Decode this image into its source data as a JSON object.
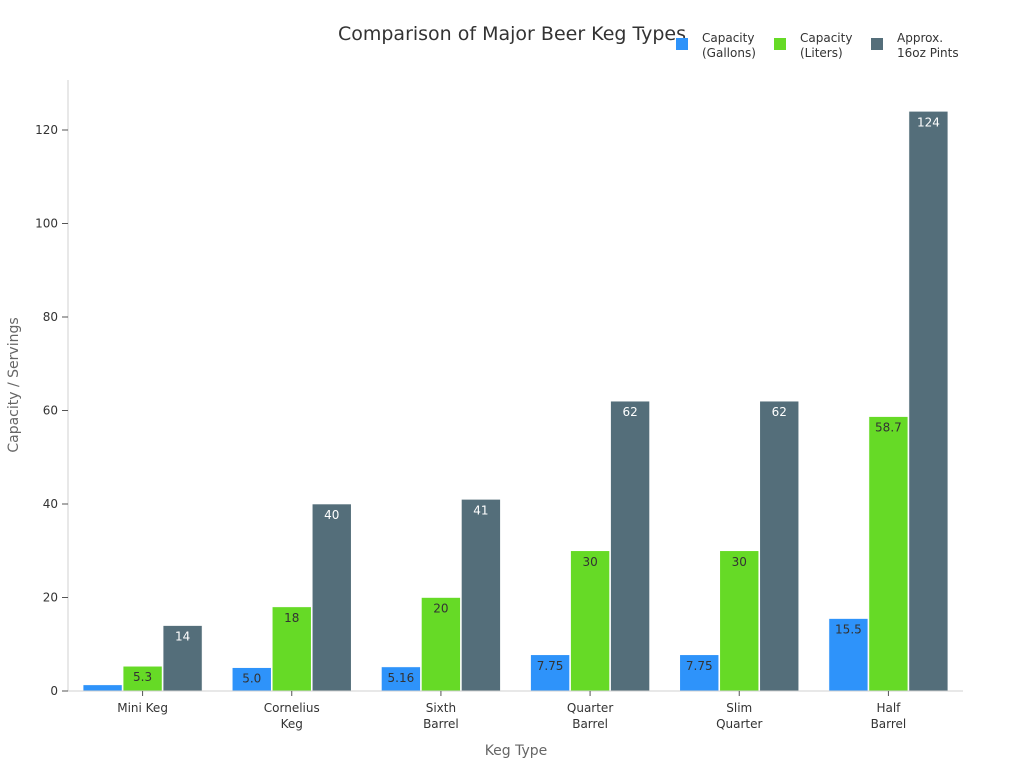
{
  "chart_data": {
    "type": "bar",
    "title": "Comparison of Major Beer Keg Types",
    "xlabel": "Keg Type",
    "ylabel": "Capacity / Servings",
    "ylim": [
      0,
      130
    ],
    "yticks": [
      0,
      20,
      40,
      60,
      80,
      100,
      120
    ],
    "grid": false,
    "legend_placement": "top-right",
    "categories": [
      [
        "Mini Keg"
      ],
      [
        "Cornelius",
        "Keg"
      ],
      [
        "Sixth",
        "Barrel"
      ],
      [
        "Quarter",
        "Barrel"
      ],
      [
        "Slim",
        "Quarter"
      ],
      [
        "Half",
        "Barrel"
      ]
    ],
    "series": [
      {
        "name": [
          "Capacity",
          "(Gallons)"
        ],
        "color": "#2e93fa",
        "label_color": "#333333",
        "values": [
          1.32,
          5.0,
          5.16,
          7.75,
          7.75,
          15.5
        ],
        "labels": [
          "",
          "5.0",
          "5.16",
          "7.75",
          "7.75",
          "15.5"
        ]
      },
      {
        "name": [
          "Capacity",
          "(Liters)"
        ],
        "color": "#66da26",
        "label_color": "#333333",
        "values": [
          5.3,
          18,
          20,
          30,
          30,
          58.7
        ],
        "labels": [
          "5.3",
          "18",
          "20",
          "30",
          "30",
          "58.7"
        ]
      },
      {
        "name": [
          "Approx.",
          "16oz Pints"
        ],
        "color": "#546e7a",
        "label_color": "#ffffff",
        "values": [
          14,
          40,
          41,
          62,
          62,
          124
        ],
        "labels": [
          "14",
          "40",
          "41",
          "62",
          "62",
          "124"
        ]
      }
    ]
  }
}
